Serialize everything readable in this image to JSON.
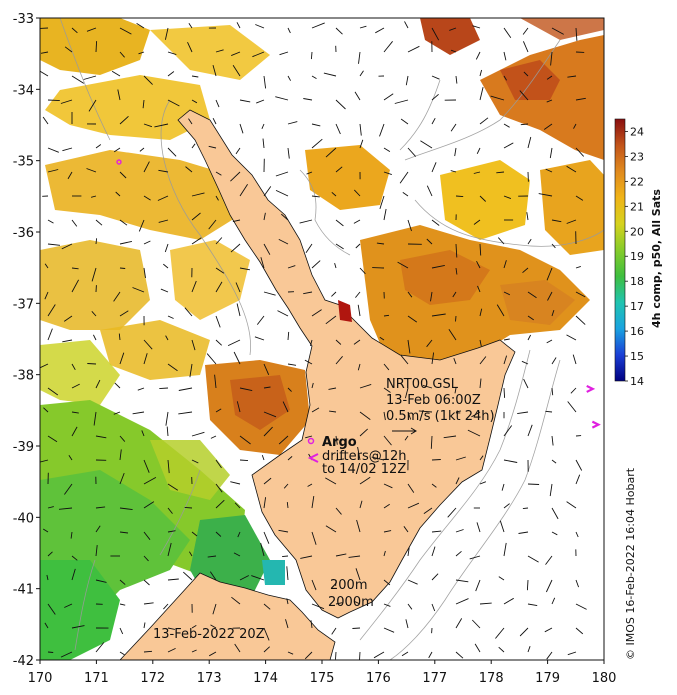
{
  "map": {
    "x_ticks": [
      "170",
      "171",
      "172",
      "173",
      "174",
      "175",
      "176",
      "177",
      "178",
      "179",
      "180"
    ],
    "y_ticks": [
      "-33",
      "-34",
      "-35",
      "-36",
      "-37",
      "-38",
      "-39",
      "-40",
      "-41",
      "-42"
    ],
    "lon_range": [
      170,
      180
    ],
    "lat_range": [
      -42,
      -33
    ]
  },
  "annotations": {
    "nrt_title": "NRT00 GSL",
    "nrt_time": "13-Feb 06:00Z",
    "nrt_scale": "0.5m/s (1kt 24h)",
    "argo": "Argo",
    "drifters": "drifters@12h",
    "drifters_to": "to 14/02 12Z",
    "contour_200": "200m",
    "contour_2000": "2000m",
    "date": "13-Feb-2022 20Z",
    "credit": "© IMOS 16-Feb-2022 16:04 Hobart"
  },
  "colorbar": {
    "label": "4h comp, p50, All Sats",
    "ticks": [
      "24",
      "23",
      "22",
      "21",
      "20",
      "19",
      "18",
      "17",
      "16",
      "15",
      "14"
    ],
    "range": [
      14,
      24.5
    ]
  },
  "colors": {
    "land": "#f9c897",
    "warm": "#e09a1e",
    "hot": "#c0521a",
    "cool": "#7dc82d",
    "argo": "#e020e0"
  },
  "drifters": [
    {
      "lon": 179.8,
      "lat": -38.2
    },
    {
      "lon": 179.9,
      "lat": -38.7
    }
  ]
}
